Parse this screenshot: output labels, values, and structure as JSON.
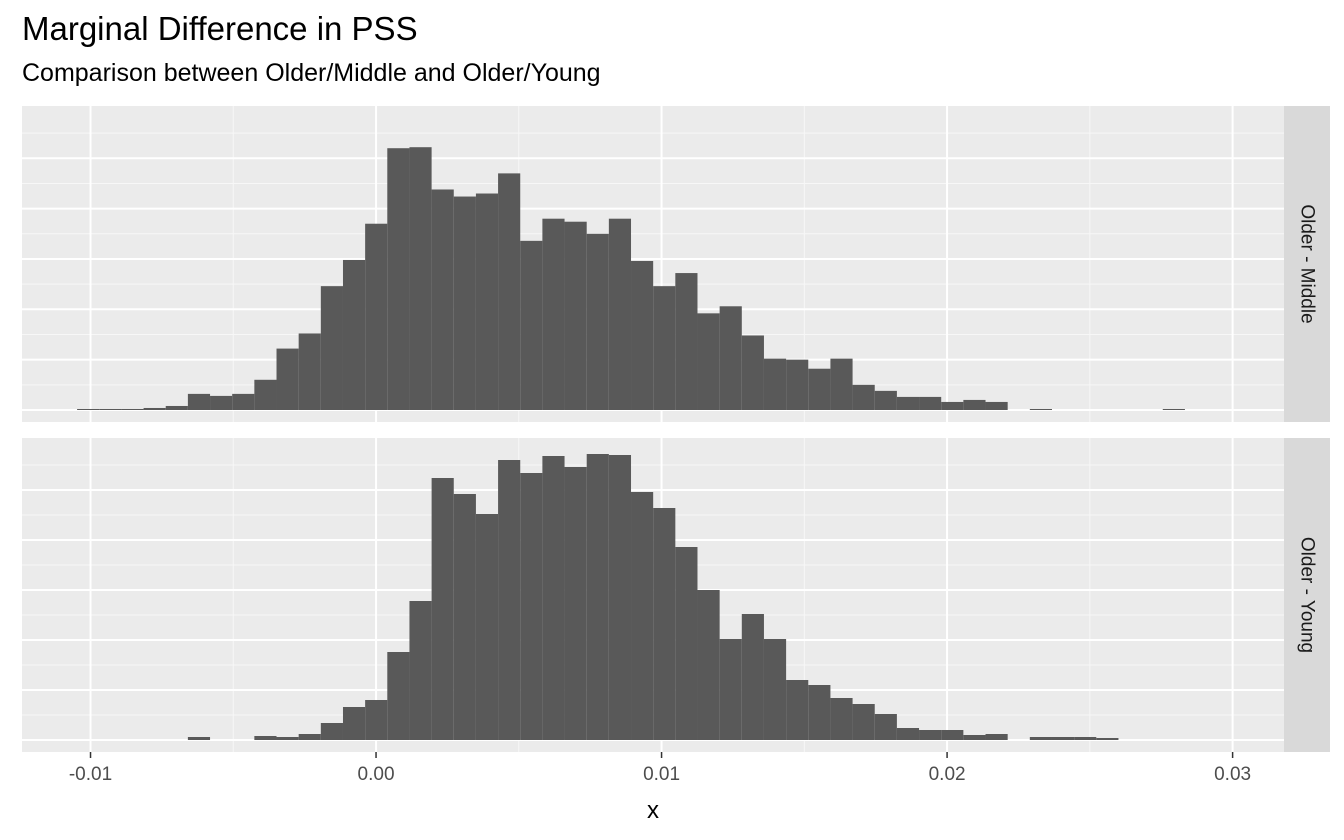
{
  "chart_data": {
    "type": "histogram",
    "title": "Marginal Difference in PSS",
    "subtitle": "Comparison between Older/Middle and Older/Young",
    "xlabel": "x",
    "ylabel": "",
    "xlim": [
      -0.0124,
      0.0318
    ],
    "x_ticks": [
      -0.01,
      0.0,
      0.01,
      0.02,
      0.03
    ],
    "x_tick_labels": [
      "-0.01",
      "0.00",
      "0.01",
      "0.02",
      "0.03"
    ],
    "y_axis_labels_shown": false,
    "grid": true,
    "facet_layout": "rows",
    "bins": {
      "start": -0.01047,
      "width": 0.000776,
      "count": 50
    },
    "facets": [
      {
        "label": "Older - Middle",
        "ymax": 290,
        "counts": [
          1,
          1,
          1,
          2,
          4,
          16,
          14,
          16,
          30,
          61,
          76,
          123,
          149,
          185,
          260,
          261,
          219,
          212,
          215,
          235,
          168,
          190,
          187,
          175,
          190,
          148,
          123,
          136,
          96,
          103,
          74,
          51,
          50,
          41,
          51,
          25,
          19,
          13,
          13,
          8,
          10,
          8,
          0,
          1,
          0,
          0,
          0,
          0,
          0,
          1
        ]
      },
      {
        "label": "Older - Young",
        "ymax": 290,
        "counts": [
          0,
          0,
          0,
          0,
          0,
          3,
          0,
          0,
          4,
          3,
          6,
          17,
          33,
          40,
          88,
          139,
          262,
          246,
          226,
          280,
          267,
          284,
          273,
          286,
          285,
          248,
          232,
          193,
          150,
          101,
          126,
          101,
          60,
          55,
          42,
          36,
          26,
          12,
          10,
          10,
          5,
          6,
          0,
          3,
          3,
          3,
          2,
          0,
          0,
          0
        ]
      }
    ]
  }
}
